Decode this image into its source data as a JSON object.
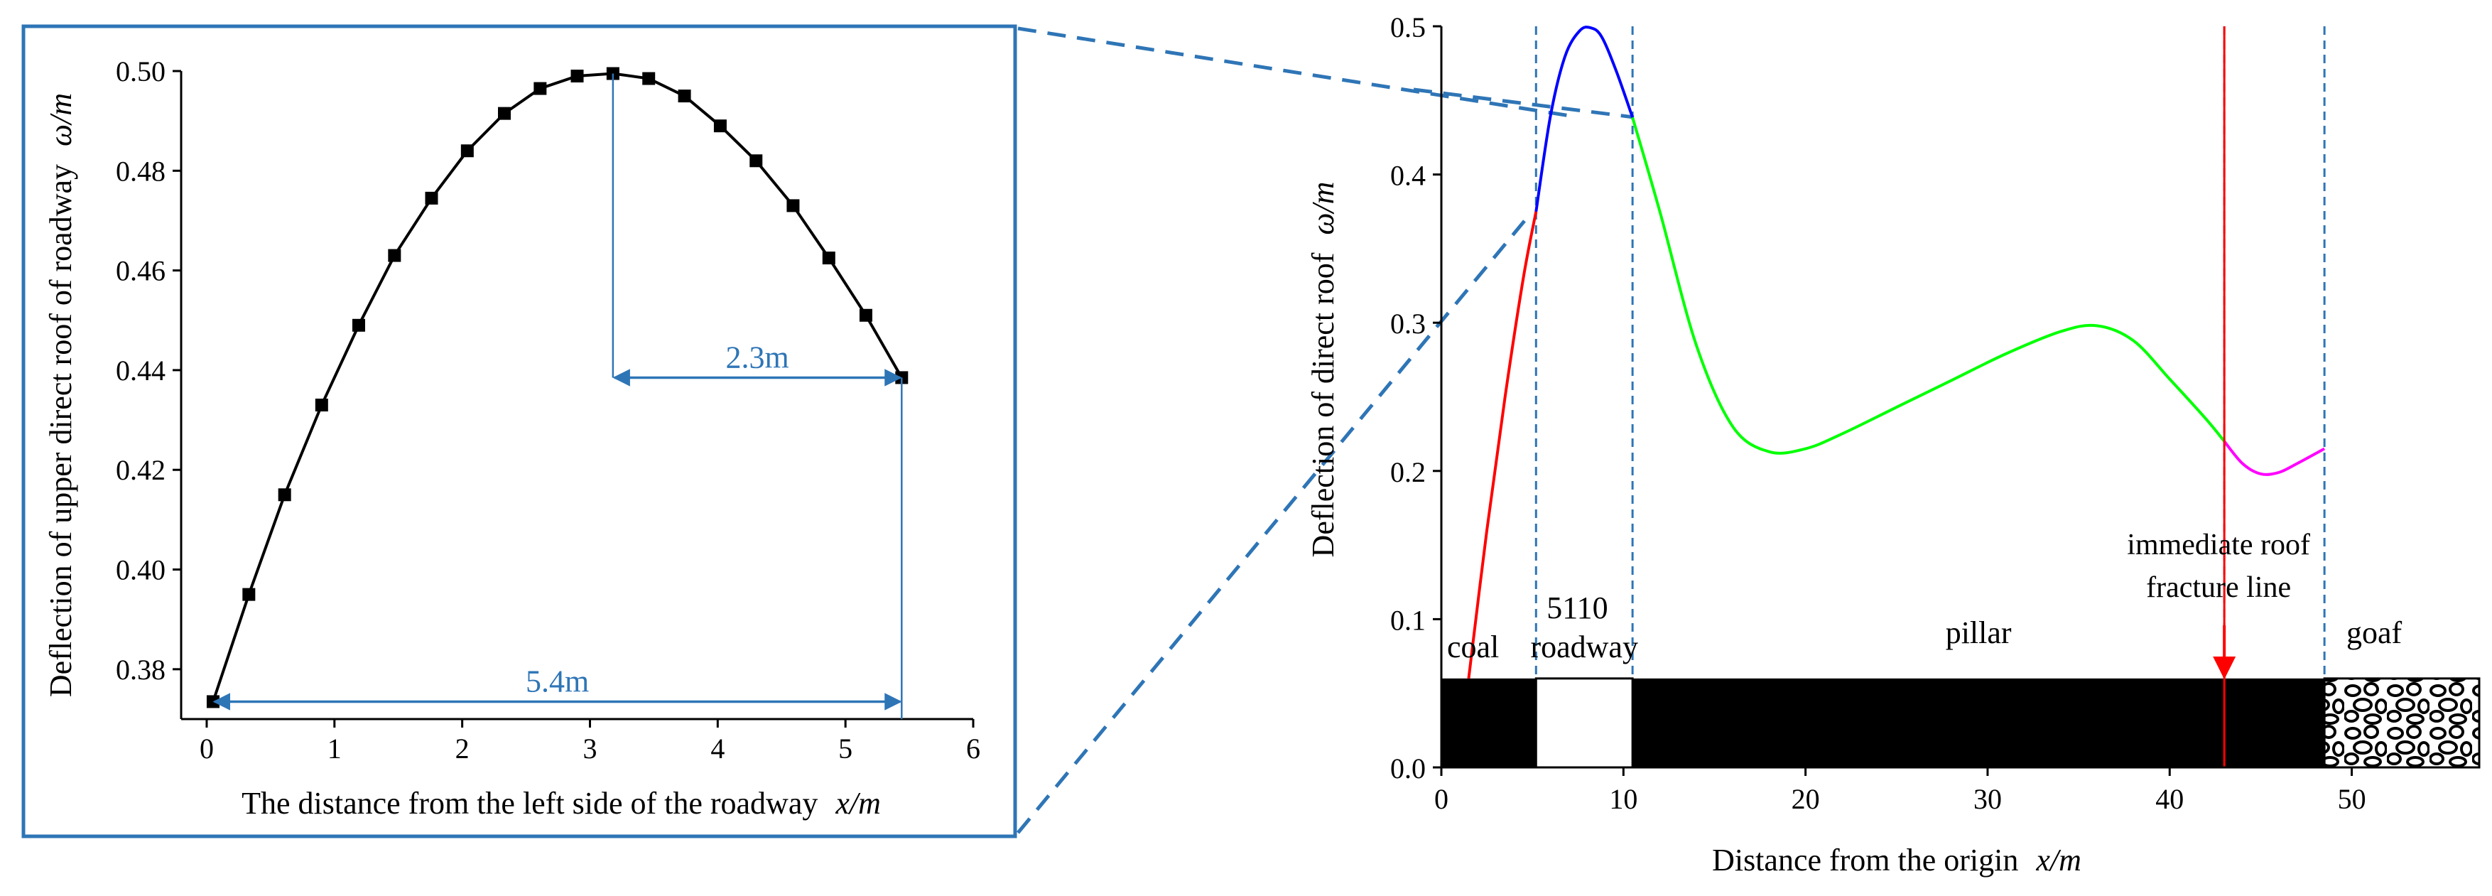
{
  "colors": {
    "frame": "#2e75b6",
    "dimension": "#2e75b6",
    "inset_curve": "#000000",
    "segment_coal": "#ff0000",
    "segment_roadway": "#0000ff",
    "segment_pillar": "#00ff00",
    "segment_goaf": "#ff00ff",
    "fracture_line": "#ff0000",
    "strata_block": "#000000"
  },
  "chart_data": [
    {
      "type": "line",
      "panel": "inset",
      "xlabel": "The distance from the left side of the roadway",
      "xlabel_unit": "x/m",
      "ylabel": "Deflection of upper direct roof of roadway",
      "ylabel_unit": "ω/m",
      "xlim": [
        -0.2,
        6
      ],
      "ylim": [
        0.37,
        0.5
      ],
      "xticks": [
        "0",
        "1",
        "2",
        "3",
        "4",
        "5",
        "6"
      ],
      "yticks": [
        "0.38",
        "0.40",
        "0.42",
        "0.44",
        "0.46",
        "0.48",
        "0.50"
      ],
      "markers": "square",
      "x": [
        0.05,
        0.33,
        0.61,
        0.9,
        1.19,
        1.47,
        1.76,
        2.04,
        2.33,
        2.61,
        2.9,
        3.18,
        3.46,
        3.74,
        4.02,
        4.3,
        4.59,
        4.87,
        5.16,
        5.44
      ],
      "y": [
        0.3735,
        0.395,
        0.415,
        0.433,
        0.449,
        0.463,
        0.4745,
        0.484,
        0.4915,
        0.4965,
        0.499,
        0.4995,
        0.4985,
        0.495,
        0.489,
        0.482,
        0.473,
        0.4625,
        0.451,
        0.4385
      ],
      "annotations": [
        {
          "label": "2.3m",
          "from_x": 3.18,
          "to_x": 5.44,
          "at_y": 0.4385
        },
        {
          "label": "5.4m",
          "from_x": 0.05,
          "to_x": 5.44,
          "at_y": 0.3735
        }
      ],
      "grid": false
    },
    {
      "type": "line",
      "panel": "main",
      "xlabel": "Distance from the origin",
      "xlabel_unit": "x/m",
      "ylabel": "Deflection of direct roof",
      "ylabel_unit": "ω/m",
      "xlim": [
        0,
        57
      ],
      "ylim": [
        0,
        0.5
      ],
      "xticks": [
        "0",
        "10",
        "20",
        "30",
        "40",
        "50"
      ],
      "yticks": [
        "0.0",
        "0.1",
        "0.2",
        "0.3",
        "0.4",
        "0.5"
      ],
      "series": [
        {
          "segment": "coal",
          "color": "#ff0000",
          "x": [
            1.5,
            2.5,
            3.5,
            4.5,
            5.2
          ],
          "y": [
            0.06,
            0.16,
            0.25,
            0.33,
            0.375
          ]
        },
        {
          "segment": "roadway",
          "color": "#0000ff",
          "x": [
            5.2,
            6.0,
            6.8,
            7.6,
            8.2,
            8.8,
            9.6,
            10.5
          ],
          "y": [
            0.375,
            0.44,
            0.48,
            0.497,
            0.499,
            0.493,
            0.47,
            0.4385
          ]
        },
        {
          "segment": "pillar",
          "color": "#00ff00",
          "x": [
            10.5,
            12,
            14,
            16,
            18,
            20,
            22,
            25,
            28,
            31,
            34,
            36,
            38,
            40,
            42,
            43
          ],
          "y": [
            0.4385,
            0.375,
            0.285,
            0.23,
            0.213,
            0.215,
            0.225,
            0.243,
            0.261,
            0.279,
            0.294,
            0.298,
            0.288,
            0.262,
            0.235,
            0.22
          ]
        },
        {
          "segment": "goaf",
          "color": "#ff00ff",
          "x": [
            43,
            44,
            45,
            46,
            47,
            48.5
          ],
          "y": [
            0.22,
            0.205,
            0.198,
            0.199,
            0.205,
            0.215
          ]
        }
      ],
      "boundaries_x": [
        5.2,
        10.5,
        43,
        48.5
      ],
      "strata_bar": {
        "y_from": 0.0,
        "y_to": 0.06
      },
      "zones": [
        {
          "label": "coal",
          "x_from": 0,
          "x_to": 5.2
        },
        {
          "label": "5110",
          "label2": "roadway",
          "x_from": 5.2,
          "x_to": 10.5
        },
        {
          "label": "pillar",
          "x_from": 10.5,
          "x_to": 48.5
        },
        {
          "label": "goaf",
          "x_from": 48.5,
          "x_to": 57
        }
      ],
      "fracture": {
        "label": "immediate roof",
        "label2": "fracture line",
        "x": 43
      },
      "grid": false
    }
  ]
}
